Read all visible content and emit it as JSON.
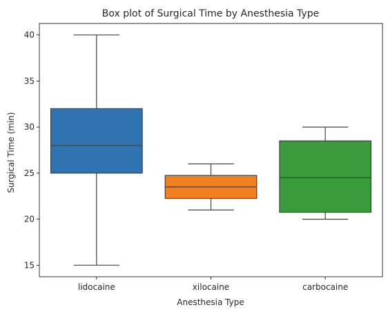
{
  "chart_data": {
    "type": "box",
    "title": "Box plot of Surgical Time by Anesthesia Type",
    "xlabel": "Anesthesia Type",
    "ylabel": "Surgical Time (min)",
    "ylim": [
      13.75,
      41.25
    ],
    "yticks": [
      15,
      20,
      25,
      30,
      35,
      40
    ],
    "grid": false,
    "categories": [
      "lidocaine",
      "xilocaine",
      "carbocaine"
    ],
    "boxes": [
      {
        "category": "lidocaine",
        "min": 15,
        "q1": 25,
        "median": 28,
        "q3": 32,
        "max": 40,
        "color": "#2f74b0"
      },
      {
        "category": "xilocaine",
        "min": 21,
        "q1": 22.25,
        "median": 23.5,
        "q3": 24.75,
        "max": 26,
        "color": "#f07f1d"
      },
      {
        "category": "carbocaine",
        "min": 20,
        "q1": 20.75,
        "median": 24.5,
        "q3": 28.5,
        "max": 30,
        "color": "#3a9b3a"
      }
    ]
  }
}
